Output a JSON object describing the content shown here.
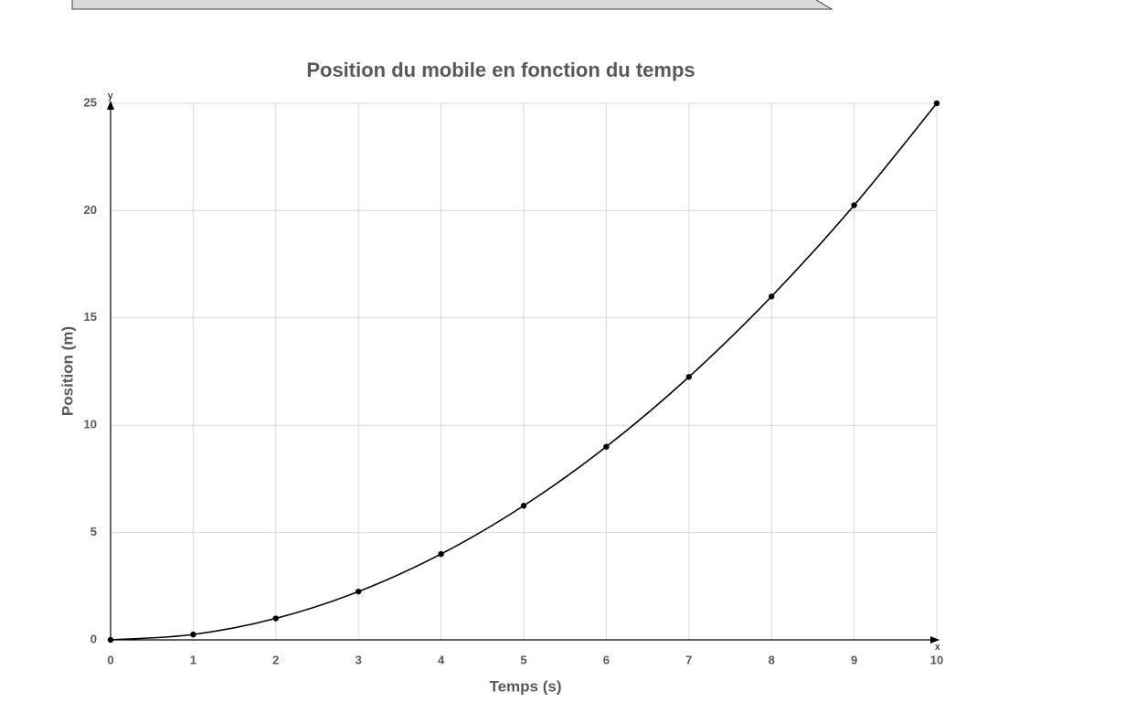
{
  "chart_data": {
    "type": "scatter",
    "title": "Position du mobile en fonction du temps",
    "x_label": "Temps (s)",
    "y_label": "Position (m)",
    "x_axis_symbol": "x",
    "y_axis_symbol": "y",
    "x": [
      0,
      1,
      2,
      3,
      4,
      5,
      6,
      7,
      8,
      9,
      10
    ],
    "series": [
      {
        "values": [
          0,
          0.25,
          1,
          2.25,
          4,
          6.25,
          9,
          12.25,
          16,
          20.25,
          25
        ],
        "color": "#000000"
      }
    ],
    "smooth_line": true,
    "xlim": [
      0,
      10
    ],
    "xticks": [
      0,
      1,
      2,
      3,
      4,
      5,
      6,
      7,
      8,
      9,
      10
    ],
    "ylim": [
      0,
      25
    ],
    "yticks": [
      0,
      5,
      10,
      15,
      20,
      25
    ],
    "grid": true
  }
}
